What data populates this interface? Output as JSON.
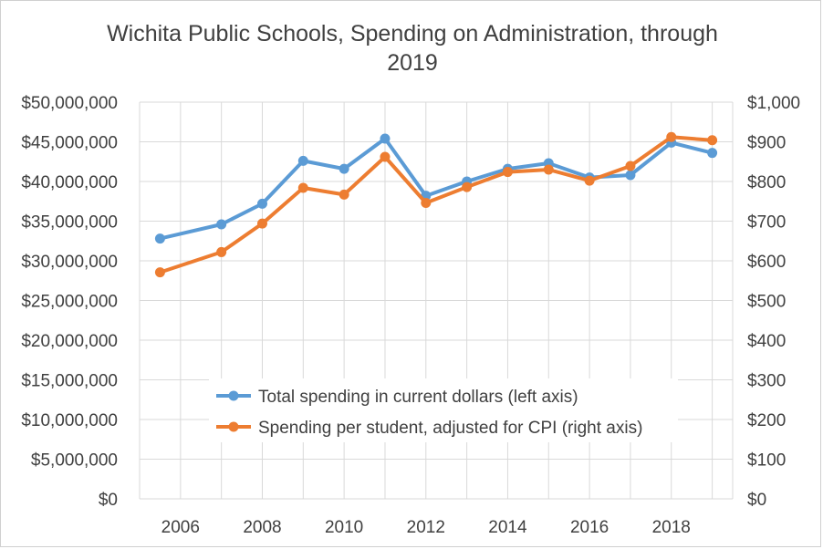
{
  "chart_data": {
    "type": "line",
    "title": "Wichita Public Schools, Spending on Administration, through 2019",
    "title_lines": [
      "Wichita Public Schools, Spending on Administration, through",
      "2019"
    ],
    "x": [
      2005.5,
      2007,
      2008,
      2009,
      2010,
      2011,
      2012,
      2013,
      2014,
      2015,
      2016,
      2017,
      2018,
      2019
    ],
    "xlim": [
      2005,
      2019.5
    ],
    "x_ticks": [
      2006,
      2008,
      2010,
      2012,
      2014,
      2016,
      2018
    ],
    "x_tick_labels": [
      "2006",
      "2008",
      "2010",
      "2012",
      "2014",
      "2016",
      "2018"
    ],
    "grid": true,
    "legend_position": "bottom-center",
    "y_left": {
      "lim": [
        0,
        50000000
      ],
      "ticks": [
        0,
        5000000,
        10000000,
        15000000,
        20000000,
        25000000,
        30000000,
        35000000,
        40000000,
        45000000,
        50000000
      ],
      "tick_labels": [
        "$0",
        "$5,000,000",
        "$10,000,000",
        "$15,000,000",
        "$20,000,000",
        "$25,000,000",
        "$30,000,000",
        "$35,000,000",
        "$40,000,000",
        "$45,000,000",
        "$50,000,000"
      ]
    },
    "y_right": {
      "lim": [
        0,
        1000
      ],
      "ticks": [
        0,
        100,
        200,
        300,
        400,
        500,
        600,
        700,
        800,
        900,
        1000
      ],
      "tick_labels": [
        "$0",
        "$100",
        "$200",
        "$300",
        "$400",
        "$500",
        "$600",
        "$700",
        "$800",
        "$900",
        "$1,000"
      ]
    },
    "series": [
      {
        "name": "Total spending in current dollars (left axis)",
        "axis": "left",
        "color": "#5b9bd5",
        "values": [
          32800000,
          34600000,
          37200000,
          42600000,
          41600000,
          45400000,
          38200000,
          40000000,
          41600000,
          42300000,
          40500000,
          40800000,
          44900000,
          43600000
        ]
      },
      {
        "name": "Spending per student, adjusted for CPI (right axis)",
        "axis": "right",
        "color": "#ed7d31",
        "values": [
          571,
          622,
          694,
          784,
          767,
          862,
          746,
          786,
          824,
          830,
          802,
          839,
          912,
          904
        ]
      }
    ]
  },
  "colors": {
    "grid": "#d9d9d9",
    "text": "#404040",
    "background": "#ffffff"
  }
}
